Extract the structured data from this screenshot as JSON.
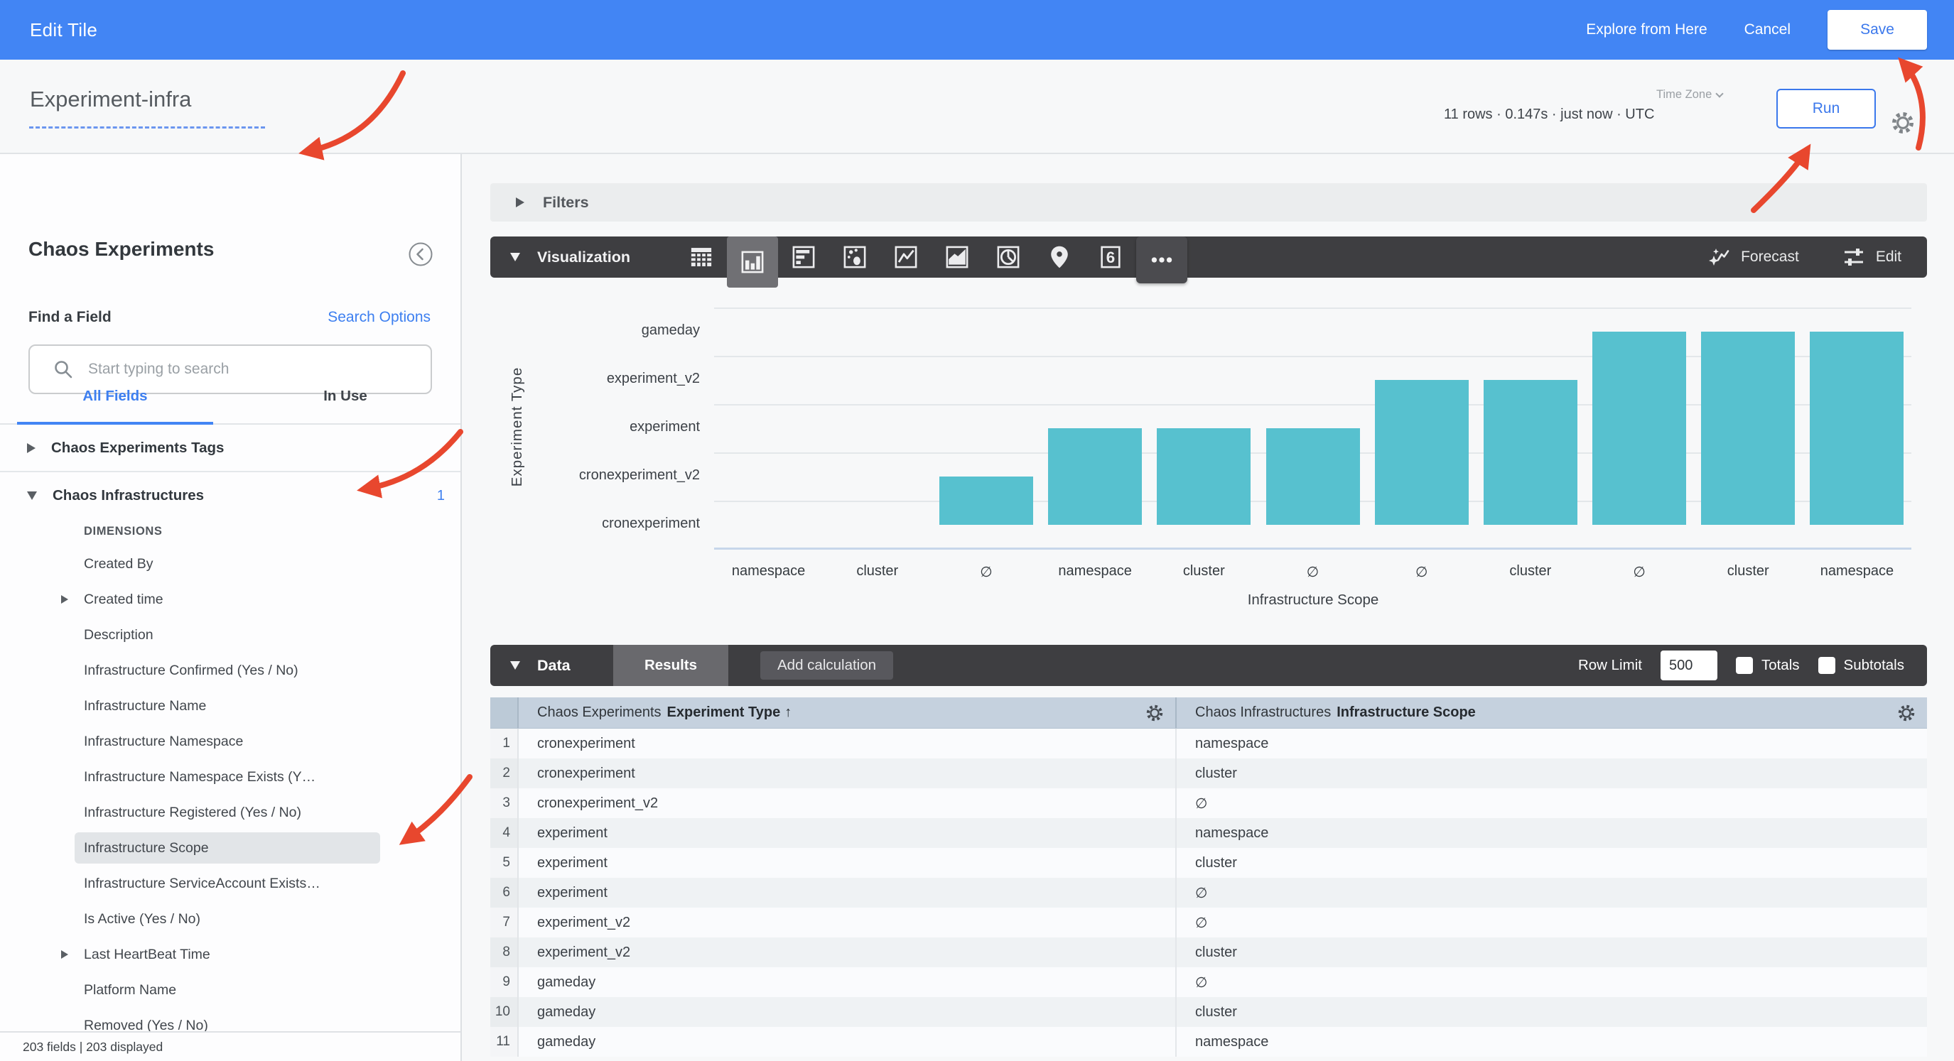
{
  "topbar": {
    "title": "Edit Tile",
    "explore_link": "Explore from Here",
    "cancel_label": "Cancel",
    "save_label": "Save"
  },
  "query_header": {
    "title": "Experiment-infra",
    "stats_text": "11 rows · 0.147s · just now · UTC",
    "timezone_label": "Time Zone",
    "run_label": "Run"
  },
  "sidebar": {
    "view_title": "Chaos Experiments",
    "find_label": "Find a Field",
    "search_options_label": "Search Options",
    "search_placeholder": "Start typing to search",
    "tabs": {
      "all_fields": "All Fields",
      "in_use": "In Use"
    },
    "groups": [
      {
        "label": "Chaos Experiments Tags",
        "expanded": false,
        "count": ""
      },
      {
        "label": "Chaos Infrastructures",
        "expanded": true,
        "count": "1"
      }
    ],
    "section_label": "DIMENSIONS",
    "fields": [
      {
        "label": "Created By"
      },
      {
        "label": "Created time",
        "expandable": true
      },
      {
        "label": "Description"
      },
      {
        "label": "Infrastructure Confirmed (Yes / No)"
      },
      {
        "label": "Infrastructure Name"
      },
      {
        "label": "Infrastructure Namespace"
      },
      {
        "label": "Infrastructure Namespace Exists (Y…"
      },
      {
        "label": "Infrastructure Registered (Yes / No)"
      },
      {
        "label": "Infrastructure Scope",
        "selected": true
      },
      {
        "label": "Infrastructure ServiceAccount Exists…"
      },
      {
        "label": "Is Active (Yes / No)"
      },
      {
        "label": "Last HeartBeat Time",
        "expandable": true
      },
      {
        "label": "Platform Name"
      },
      {
        "label": "Removed (Yes / No)"
      }
    ],
    "footer": "203 fields | 203 displayed"
  },
  "filters": {
    "label": "Filters"
  },
  "visualization": {
    "label": "Visualization",
    "icons": [
      {
        "name": "table-chart-icon",
        "selected": false
      },
      {
        "name": "column-chart-icon",
        "selected": true
      },
      {
        "name": "bar-chart-icon",
        "selected": false
      },
      {
        "name": "scatter-plot-icon",
        "selected": false
      },
      {
        "name": "line-chart-icon",
        "selected": false
      },
      {
        "name": "area-chart-icon",
        "selected": false
      },
      {
        "name": "pie-chart-icon",
        "selected": false
      },
      {
        "name": "map-icon",
        "selected": false
      },
      {
        "name": "single-value-icon",
        "selected": false
      },
      {
        "name": "more-icon",
        "selected": false
      }
    ],
    "forecast_label": "Forecast",
    "edit_label": "Edit"
  },
  "chart_data": {
    "type": "bar",
    "title": "",
    "xlabel": "Infrastructure Scope",
    "ylabel": "Experiment Type",
    "y_categories": [
      "cronexperiment",
      "cronexperiment_v2",
      "experiment",
      "experiment_v2",
      "gameday"
    ],
    "x_labels": [
      "namespace",
      "cluster",
      "∅",
      "namespace",
      "cluster",
      "∅",
      "∅",
      "cluster",
      "∅",
      "cluster",
      "namespace"
    ],
    "points": [
      {
        "x": "namespace",
        "y": "cronexperiment"
      },
      {
        "x": "cluster",
        "y": "cronexperiment"
      },
      {
        "x": "∅",
        "y": "cronexperiment_v2"
      },
      {
        "x": "namespace",
        "y": "experiment"
      },
      {
        "x": "cluster",
        "y": "experiment"
      },
      {
        "x": "∅",
        "y": "experiment"
      },
      {
        "x": "∅",
        "y": "experiment_v2"
      },
      {
        "x": "cluster",
        "y": "experiment_v2"
      },
      {
        "x": "∅",
        "y": "gameday"
      },
      {
        "x": "cluster",
        "y": "gameday"
      },
      {
        "x": "namespace",
        "y": "gameday"
      }
    ],
    "bar_color": "#57c1cf",
    "grid": true,
    "legend": "none"
  },
  "data_section": {
    "label": "Data",
    "results_tab": "Results",
    "add_calculation": "Add calculation",
    "row_limit_label": "Row Limit",
    "row_limit_value": "500",
    "totals_label": "Totals",
    "subtotals_label": "Subtotals",
    "totals_checked": false,
    "subtotals_checked": false
  },
  "table": {
    "columns": [
      {
        "group": "Chaos Experiments",
        "field": "Experiment Type",
        "sort": "↑"
      },
      {
        "group": "Chaos Infrastructures",
        "field": "Infrastructure Scope",
        "sort": ""
      }
    ],
    "rows": [
      [
        "1",
        "cronexperiment",
        "namespace"
      ],
      [
        "2",
        "cronexperiment",
        "cluster"
      ],
      [
        "3",
        "cronexperiment_v2",
        "∅"
      ],
      [
        "4",
        "experiment",
        "namespace"
      ],
      [
        "5",
        "experiment",
        "cluster"
      ],
      [
        "6",
        "experiment",
        "∅"
      ],
      [
        "7",
        "experiment_v2",
        "∅"
      ],
      [
        "8",
        "experiment_v2",
        "cluster"
      ],
      [
        "9",
        "gameday",
        "∅"
      ],
      [
        "10",
        "gameday",
        "cluster"
      ],
      [
        "11",
        "gameday",
        "namespace"
      ]
    ]
  }
}
